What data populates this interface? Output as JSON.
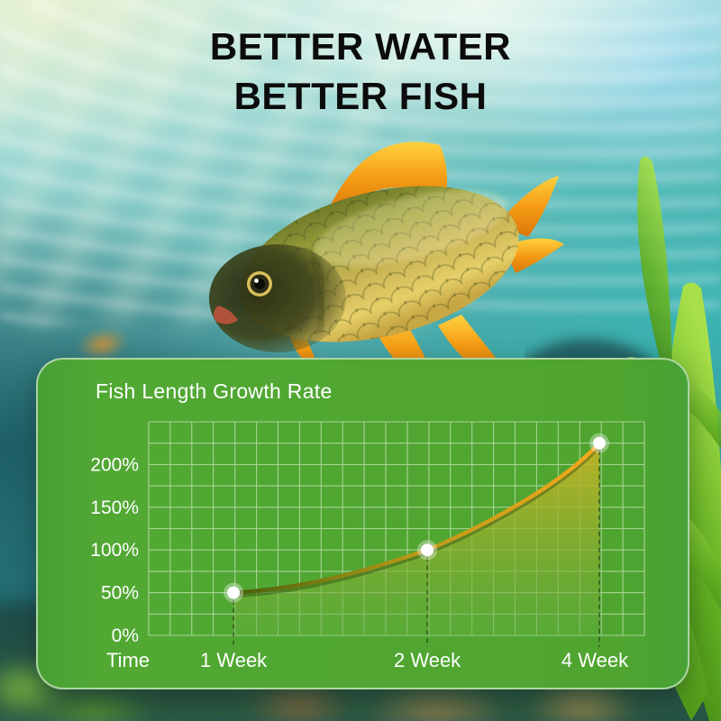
{
  "hero": {
    "title_line1": "BETTER WATER",
    "title_line2": "BETTER FISH"
  },
  "chart_data": {
    "type": "area",
    "title": "Fish Length Growth Rate",
    "xlabel": "Time",
    "ylabel": "",
    "categories": [
      "1 Week",
      "2 Week",
      "4 Week"
    ],
    "values": [
      50,
      100,
      225
    ],
    "y_ticks": [
      "0%",
      "50%",
      "100%",
      "150%",
      "200%"
    ],
    "y_tick_values": [
      0,
      50,
      100,
      150,
      200
    ],
    "ylim": [
      0,
      250
    ],
    "grid": true,
    "legend_position": "none",
    "panel_color": "#4fa433",
    "grid_color": "rgba(255,255,255,0.5)",
    "line_colors": [
      "#44600c",
      "#b99a16",
      "#f5a91d"
    ],
    "fill_colors": [
      "#c8b426",
      "#8cae2f",
      "#60ad3e"
    ],
    "marker_color": "#ffffff",
    "dropline_color": "#1e2d0a",
    "text_color": "#ffffff"
  }
}
